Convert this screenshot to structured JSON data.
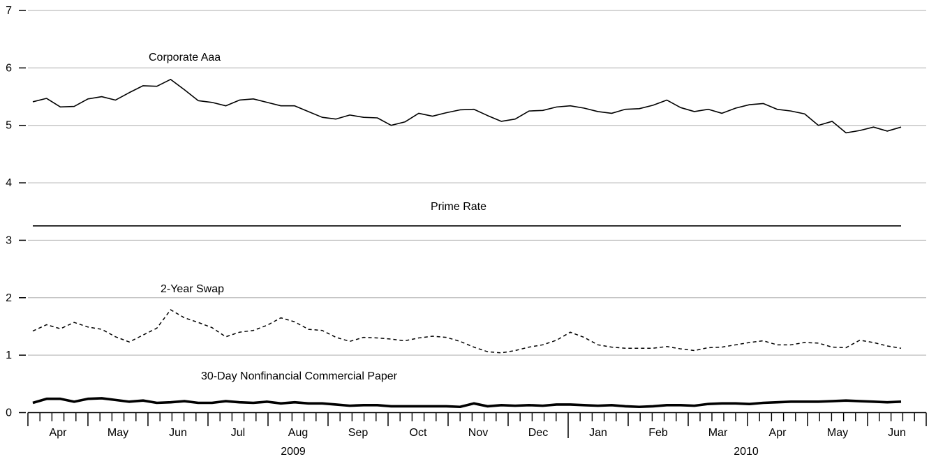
{
  "chart_data": {
    "type": "line",
    "y_ticks": [
      "0",
      "1",
      "2",
      "3",
      "4",
      "5",
      "6",
      "7"
    ],
    "ylim": [
      0,
      7
    ],
    "grid": true,
    "months": [
      "Apr",
      "May",
      "Jun",
      "Jul",
      "Aug",
      "Sep",
      "Oct",
      "Nov",
      "Dec",
      "Jan",
      "Feb",
      "Mar",
      "Apr",
      "May",
      "Jun"
    ],
    "years": [
      "2009",
      "2010"
    ],
    "series": [
      {
        "name": "Corporate Aaa",
        "style": "solid",
        "values": [
          5.41,
          5.47,
          5.32,
          5.33,
          5.46,
          5.5,
          5.44,
          5.57,
          5.69,
          5.68,
          5.8,
          5.62,
          5.43,
          5.4,
          5.34,
          5.44,
          5.46,
          5.4,
          5.34,
          5.34,
          5.24,
          5.14,
          5.11,
          5.18,
          5.14,
          5.13,
          5.0,
          5.06,
          5.21,
          5.16,
          5.22,
          5.27,
          5.28,
          5.17,
          5.07,
          5.11,
          5.25,
          5.26,
          5.32,
          5.34,
          5.3,
          5.24,
          5.21,
          5.28,
          5.29,
          5.35,
          5.44,
          5.31,
          5.24,
          5.28,
          5.21,
          5.3,
          5.36,
          5.38,
          5.28,
          5.25,
          5.2,
          5.0,
          5.07,
          4.87,
          4.91,
          4.97,
          4.9,
          4.97
        ]
      },
      {
        "name": "Prime Rate",
        "style": "solid",
        "values": [
          3.25,
          3.25,
          3.25,
          3.25,
          3.25,
          3.25,
          3.25,
          3.25,
          3.25,
          3.25,
          3.25,
          3.25,
          3.25,
          3.25,
          3.25,
          3.25,
          3.25,
          3.25,
          3.25,
          3.25,
          3.25,
          3.25,
          3.25,
          3.25,
          3.25,
          3.25,
          3.25,
          3.25,
          3.25,
          3.25,
          3.25,
          3.25,
          3.25,
          3.25,
          3.25,
          3.25,
          3.25,
          3.25,
          3.25,
          3.25,
          3.25,
          3.25,
          3.25,
          3.25,
          3.25,
          3.25,
          3.25,
          3.25,
          3.25,
          3.25,
          3.25,
          3.25,
          3.25,
          3.25,
          3.25,
          3.25,
          3.25,
          3.25,
          3.25,
          3.25,
          3.25,
          3.25,
          3.25,
          3.25
        ]
      },
      {
        "name": "2-Year Swap",
        "style": "dashed",
        "values": [
          1.42,
          1.53,
          1.46,
          1.57,
          1.49,
          1.45,
          1.32,
          1.23,
          1.35,
          1.47,
          1.79,
          1.65,
          1.57,
          1.48,
          1.32,
          1.4,
          1.43,
          1.52,
          1.65,
          1.58,
          1.45,
          1.43,
          1.31,
          1.24,
          1.31,
          1.3,
          1.28,
          1.25,
          1.3,
          1.33,
          1.31,
          1.24,
          1.14,
          1.06,
          1.04,
          1.08,
          1.14,
          1.18,
          1.26,
          1.4,
          1.31,
          1.18,
          1.14,
          1.12,
          1.12,
          1.12,
          1.15,
          1.11,
          1.08,
          1.13,
          1.14,
          1.18,
          1.22,
          1.25,
          1.18,
          1.18,
          1.22,
          1.21,
          1.14,
          1.13,
          1.26,
          1.22,
          1.16,
          1.12
        ]
      },
      {
        "name": "30-Day Nonfinancial Commercial Paper",
        "style": "thick",
        "values": [
          0.17,
          0.24,
          0.24,
          0.19,
          0.24,
          0.25,
          0.22,
          0.19,
          0.21,
          0.17,
          0.18,
          0.2,
          0.17,
          0.17,
          0.2,
          0.18,
          0.17,
          0.19,
          0.16,
          0.18,
          0.16,
          0.16,
          0.14,
          0.12,
          0.13,
          0.13,
          0.11,
          0.11,
          0.11,
          0.11,
          0.11,
          0.1,
          0.16,
          0.11,
          0.13,
          0.12,
          0.13,
          0.12,
          0.14,
          0.14,
          0.13,
          0.12,
          0.13,
          0.11,
          0.1,
          0.11,
          0.13,
          0.13,
          0.12,
          0.15,
          0.16,
          0.16,
          0.15,
          0.17,
          0.18,
          0.19,
          0.19,
          0.19,
          0.2,
          0.21,
          0.2,
          0.19,
          0.18,
          0.19
        ]
      }
    ]
  }
}
